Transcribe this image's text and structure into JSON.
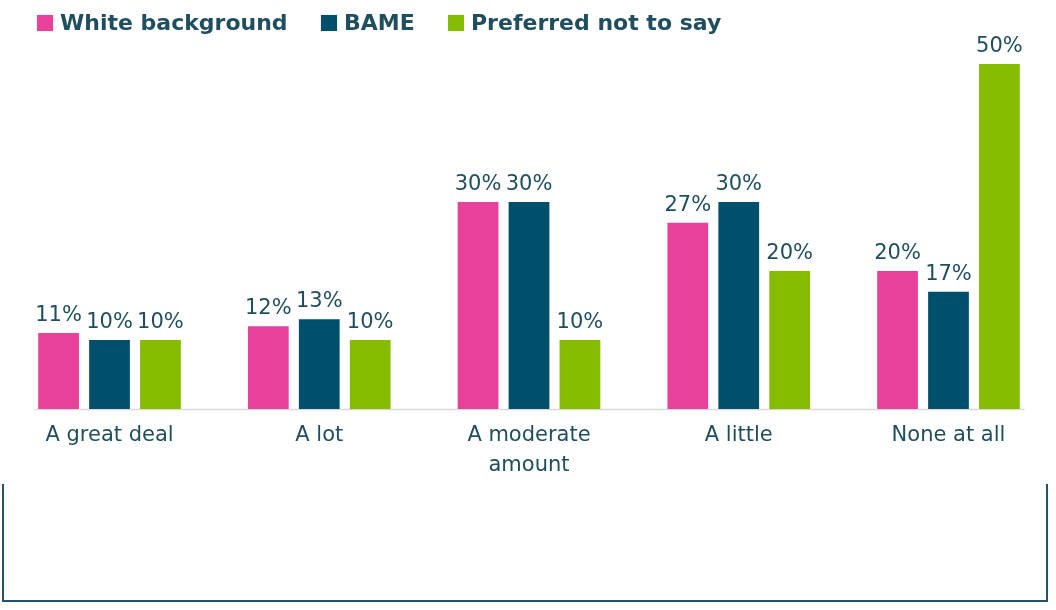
{
  "chart_data": {
    "type": "bar",
    "categories": [
      "A great deal",
      "A lot",
      "A moderate amount",
      "A little",
      "None at all"
    ],
    "series": [
      {
        "name": "White background",
        "color": "#e8419a",
        "values": [
          11,
          12,
          30,
          27,
          20
        ],
        "value_labels": [
          "11%",
          "12%",
          "30%",
          "27%",
          "20%"
        ]
      },
      {
        "name": "BAME",
        "color": "#004f6b",
        "values": [
          10,
          13,
          30,
          30,
          17
        ],
        "value_labels": [
          "10%",
          "13%",
          "30%",
          "30%",
          "17%"
        ]
      },
      {
        "name": "Preferred not to say",
        "color": "#86bc00",
        "values": [
          10,
          10,
          10,
          20,
          50
        ],
        "value_labels": [
          "10%",
          "10%",
          "10%",
          "20%",
          "50%"
        ]
      }
    ],
    "legend": "top",
    "grid": false
  }
}
